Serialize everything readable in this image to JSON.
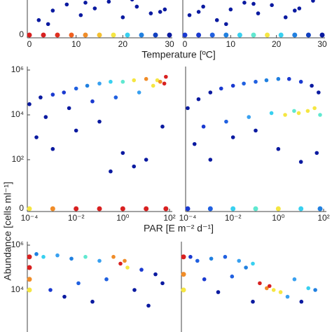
{
  "chart_data": [
    {
      "type": "scatter",
      "xlabel": "Temperature [ºC]",
      "xscale": "linear",
      "yscale": "log",
      "xlim": [
        0,
        30
      ],
      "xticks": [
        0,
        10,
        20,
        30
      ],
      "ylim": [
        1,
        1000000
      ],
      "yticks": [
        0
      ],
      "x": [
        2,
        5,
        8,
        11,
        14,
        17,
        20,
        23,
        26,
        29,
        4,
        12,
        22,
        28,
        0,
        3,
        6,
        9,
        12,
        15,
        18,
        21,
        24,
        27,
        30
      ],
      "y": [
        3,
        8,
        15,
        5,
        10,
        20,
        4,
        12,
        6,
        9,
        2,
        18,
        25,
        7,
        0,
        0,
        0,
        0,
        0,
        0,
        0,
        0,
        0,
        0,
        0
      ],
      "colors": [
        "#0a1aa0",
        "#0a1aa0",
        "#0a1aa0",
        "#0a1aa0",
        "#0a1aa0",
        "#0a1aa0",
        "#0a1aa0",
        "#0a1aa0",
        "#0a1aa0",
        "#0a1aa0",
        "#0a1aa0",
        "#0a1aa0",
        "#0a1aa0",
        "#0a1aa0",
        "#d82020",
        "#d82020",
        "#e03020",
        "#f06020",
        "#f08c28",
        "#f5c030",
        "#f5e642",
        "#38d0f0",
        "#2080e0",
        "#1040c0",
        "#0a1aa0"
      ]
    },
    {
      "type": "scatter",
      "xscale": "linear",
      "yscale": "log",
      "xlim": [
        0,
        30
      ],
      "xticks": [
        0,
        10,
        20,
        30
      ],
      "ylim": [
        1,
        1000000
      ],
      "x": [
        1,
        4,
        7,
        10,
        13,
        16,
        19,
        22,
        25,
        28,
        3,
        9,
        15,
        24,
        0,
        3,
        6,
        9,
        12,
        15,
        18,
        21,
        24,
        27,
        30
      ],
      "y": [
        5,
        12,
        3,
        9,
        18,
        6,
        14,
        4,
        10,
        22,
        7,
        2,
        16,
        8,
        0,
        0,
        0,
        0,
        0,
        0,
        0,
        0,
        0,
        0,
        0
      ],
      "colors": [
        "#0a1aa0",
        "#0a1aa0",
        "#0a1aa0",
        "#0a1aa0",
        "#0a1aa0",
        "#0a1aa0",
        "#0a1aa0",
        "#0a1aa0",
        "#0a1aa0",
        "#0a1aa0",
        "#0a1aa0",
        "#0a1aa0",
        "#0a1aa0",
        "#0a1aa0",
        "#1a3ad0",
        "#1a3ad0",
        "#2060e0",
        "#2080e0",
        "#38d0f0",
        "#60e8d0",
        "#f5e642",
        "#38d0f0",
        "#2080e0",
        "#1040c0",
        "#0a1aa0"
      ]
    },
    {
      "type": "scatter",
      "xlabel": "PAR [E m⁻² d⁻¹]",
      "ylabel": "Abundance [cells ml⁻¹]",
      "xscale": "log",
      "yscale": "log",
      "xlim": [
        0.0001,
        100
      ],
      "xticks": [
        {
          "value": 0.0001,
          "label": "10⁻⁴"
        },
        {
          "value": 0.01,
          "label": "10⁻²"
        },
        {
          "value": 1,
          "label": "10⁰"
        },
        {
          "value": 100,
          "label": "10²"
        }
      ],
      "ylim": [
        1,
        1000000
      ],
      "yticks": [
        {
          "value": 1000000,
          "label": "10⁶"
        },
        {
          "value": 10000,
          "label": "10⁴"
        },
        {
          "value": 100,
          "label": "10²"
        },
        0
      ],
      "x": [
        0.0001,
        0.0003,
        0.001,
        0.003,
        0.01,
        0.03,
        0.1,
        0.3,
        1,
        3,
        10,
        30,
        60,
        0.0002,
        0.001,
        0.01,
        0.1,
        1,
        10,
        50,
        0.0005,
        0.005,
        0.05,
        0.5,
        5,
        0.3,
        3,
        20,
        40,
        70,
        0.0001,
        0.001,
        0.01,
        0.1,
        1,
        10,
        70
      ],
      "y": [
        30000,
        60000,
        80000,
        100000,
        150000,
        200000,
        250000,
        300000,
        300000,
        350000,
        400000,
        350000,
        250000,
        1000,
        300,
        2000,
        5000,
        200,
        100,
        3000,
        8000,
        20000,
        40000,
        60000,
        100000,
        30,
        50,
        200000,
        300000,
        500000,
        0,
        0,
        0,
        0,
        0,
        0,
        0
      ],
      "colors": [
        "#0a1aa0",
        "#0a1aa0",
        "#1a3ad0",
        "#1a3ad0",
        "#2060e0",
        "#2080e0",
        "#38a0f0",
        "#38d0f0",
        "#60e8d0",
        "#f5e642",
        "#f08c28",
        "#f5e642",
        "#d82020",
        "#0a1aa0",
        "#0a1aa0",
        "#0a1aa0",
        "#0a1aa0",
        "#0a1aa0",
        "#0a1aa0",
        "#0a1aa0",
        "#0a1aa0",
        "#0a1aa0",
        "#1a3ad0",
        "#2060e0",
        "#38a0f0",
        "#0a1aa0",
        "#0a1aa0",
        "#f5e642",
        "#f08c28",
        "#d82020",
        "#f5e642",
        "#f08c28",
        "#d82020",
        "#d82020",
        "#d82020",
        "#d82020",
        "#d82020"
      ]
    },
    {
      "type": "scatter",
      "xscale": "log",
      "yscale": "log",
      "xlim": [
        0.0001,
        100
      ],
      "xticks": [
        {
          "value": 0.0001,
          "label": "10⁻⁴"
        },
        {
          "value": 0.01,
          "label": "10⁻²"
        },
        {
          "value": 1,
          "label": "10⁰"
        },
        {
          "value": 100,
          "label": "10²"
        }
      ],
      "ylim": [
        1,
        1000000
      ],
      "x": [
        0.0001,
        0.0003,
        0.001,
        0.003,
        0.01,
        0.03,
        0.1,
        0.3,
        1,
        3,
        10,
        30,
        60,
        0.0002,
        0.001,
        0.01,
        0.1,
        1,
        10,
        50,
        0.0005,
        0.005,
        0.05,
        0.5,
        5,
        2,
        8,
        20,
        40,
        70,
        0.0001,
        0.001,
        0.01,
        0.1,
        1,
        10,
        70
      ],
      "y": [
        20000,
        50000,
        100000,
        150000,
        200000,
        250000,
        300000,
        350000,
        400000,
        400000,
        300000,
        200000,
        100000,
        500,
        100,
        1000,
        2000,
        300,
        80,
        200,
        3000,
        5000,
        8000,
        12000,
        15000,
        10000,
        12000,
        15000,
        20000,
        10000,
        0,
        0,
        0,
        0,
        0,
        0,
        0
      ],
      "colors": [
        "#0a1aa0",
        "#0a1aa0",
        "#0a1aa0",
        "#1a3ad0",
        "#1a3ad0",
        "#2060e0",
        "#2060e0",
        "#2080e0",
        "#2080e0",
        "#1a3ad0",
        "#1a3ad0",
        "#0a1aa0",
        "#0a1aa0",
        "#0a1aa0",
        "#0a1aa0",
        "#0a1aa0",
        "#0a1aa0",
        "#0a1aa0",
        "#0a1aa0",
        "#0a1aa0",
        "#1a3ad0",
        "#2060e0",
        "#38a0f0",
        "#38d0f0",
        "#60e8d0",
        "#f5e642",
        "#f5e642",
        "#f5e642",
        "#f5e642",
        "#60e8d0",
        "#1a3ad0",
        "#2060e0",
        "#38d0f0",
        "#60e8d0",
        "#f5e642",
        "#38d0f0",
        "#2080e0"
      ]
    },
    {
      "type": "scatter",
      "xscale": "linear",
      "yscale": "log",
      "xlim": [
        0,
        1
      ],
      "ylim": [
        1,
        1000000
      ],
      "yticks": [
        {
          "value": 1000000,
          "label": "10⁶"
        },
        {
          "value": 10000,
          "label": "10⁴"
        }
      ],
      "x": [
        0,
        0,
        0,
        0,
        0.05,
        0.1,
        0.2,
        0.3,
        0.4,
        0.5,
        0.6,
        0.65,
        0.68,
        0.7,
        0.8,
        0.9,
        0.95,
        0.15,
        0.35,
        0.55,
        0.75,
        0.25,
        0.45,
        0.85
      ],
      "y": [
        300000,
        100000,
        30000,
        10000,
        400000,
        300000,
        350000,
        250000,
        300000,
        200000,
        300000,
        150000,
        200000,
        100000,
        80000,
        50000,
        20000,
        10000,
        20000,
        30000,
        10000,
        5000,
        3000,
        2000
      ],
      "colors": [
        "#d82020",
        "#d82020",
        "#f08c28",
        "#f5e642",
        "#2080e0",
        "#38d0f0",
        "#38a0f0",
        "#2080e0",
        "#60e8d0",
        "#38a0f0",
        "#f08c28",
        "#d82020",
        "#f08c28",
        "#f5e642",
        "#1a3ad0",
        "#0a1aa0",
        "#0a1aa0",
        "#1a3ad0",
        "#2060e0",
        "#2060e0",
        "#0a1aa0",
        "#0a1aa0",
        "#0a1aa0",
        "#0a1aa0"
      ]
    },
    {
      "type": "scatter",
      "xscale": "linear",
      "yscale": "log",
      "xlim": [
        0,
        1
      ],
      "ylim": [
        1,
        1000000
      ],
      "x": [
        0,
        0,
        0,
        0.05,
        0.1,
        0.2,
        0.3,
        0.4,
        0.5,
        0.55,
        0.6,
        0.62,
        0.65,
        0.7,
        0.8,
        0.9,
        0.95,
        0.15,
        0.35,
        0.45,
        0.75,
        0.25,
        0.85,
        0.5
      ],
      "y": [
        300000,
        50000,
        10000,
        300000,
        200000,
        250000,
        300000,
        200000,
        150000,
        20000,
        12000,
        15000,
        10000,
        8000,
        30000,
        12000,
        10000,
        30000,
        40000,
        100000,
        5000,
        8000,
        3000,
        3000
      ],
      "colors": [
        "#d82020",
        "#f08c28",
        "#f5e642",
        "#1a3ad0",
        "#2060e0",
        "#2080e0",
        "#2060e0",
        "#38a0f0",
        "#38d0f0",
        "#d82020",
        "#f08c28",
        "#d82020",
        "#f5e642",
        "#f5e642",
        "#38a0f0",
        "#38d0f0",
        "#2080e0",
        "#1a3ad0",
        "#2060e0",
        "#2080e0",
        "#38a0f0",
        "#0a1aa0",
        "#0a1aa0",
        "#0a1aa0"
      ]
    }
  ]
}
